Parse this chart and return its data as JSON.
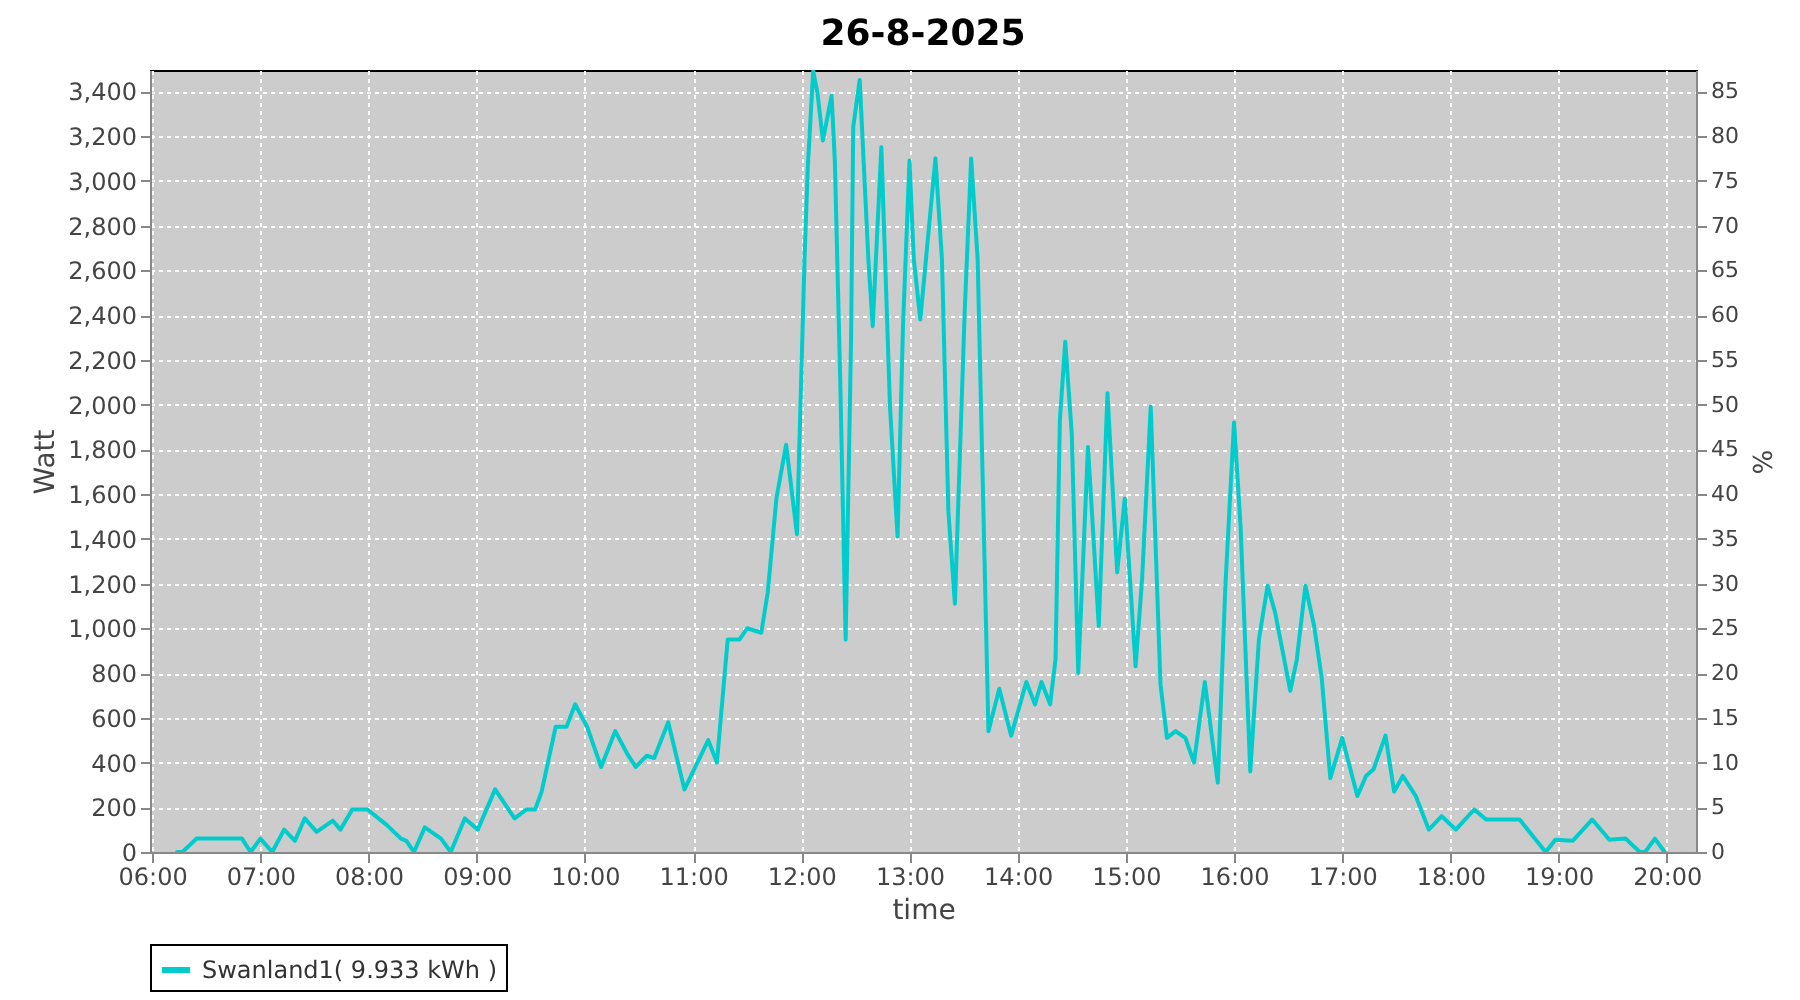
{
  "chart_data": {
    "type": "line",
    "title": "26-8-2025",
    "xlabel": "time",
    "ylabel": "Watt",
    "y2label": "%",
    "xlim": [
      5.98,
      20.27
    ],
    "xticks": [
      {
        "value": 6,
        "label": "06:00"
      },
      {
        "value": 7,
        "label": "07:00"
      },
      {
        "value": 8,
        "label": "08:00"
      },
      {
        "value": 9,
        "label": "09:00"
      },
      {
        "value": 10,
        "label": "10:00"
      },
      {
        "value": 11,
        "label": "11:00"
      },
      {
        "value": 12,
        "label": "12:00"
      },
      {
        "value": 13,
        "label": "13:00"
      },
      {
        "value": 14,
        "label": "14:00"
      },
      {
        "value": 15,
        "label": "15:00"
      },
      {
        "value": 16,
        "label": "16:00"
      },
      {
        "value": 17,
        "label": "17:00"
      },
      {
        "value": 18,
        "label": "18:00"
      },
      {
        "value": 19,
        "label": "19:00"
      },
      {
        "value": 20,
        "label": "20:00"
      }
    ],
    "ylim": [
      0,
      3495
    ],
    "yticks": [
      0,
      200,
      400,
      600,
      800,
      {
        "value": 1000,
        "label": "1,000"
      },
      {
        "value": 1200,
        "label": "1,200"
      },
      {
        "value": 1400,
        "label": "1,400"
      },
      {
        "value": 1600,
        "label": "1,600"
      },
      {
        "value": 1800,
        "label": "1,800"
      },
      {
        "value": 2000,
        "label": "2,000"
      },
      {
        "value": 2200,
        "label": "2,200"
      },
      {
        "value": 2400,
        "label": "2,400"
      },
      {
        "value": 2600,
        "label": "2,600"
      },
      {
        "value": 2800,
        "label": "2,800"
      },
      {
        "value": 3000,
        "label": "3,000"
      },
      {
        "value": 3200,
        "label": "3,200"
      },
      {
        "value": 3400,
        "label": "3,400"
      }
    ],
    "y2lim": [
      0,
      87.4
    ],
    "y2ticks": [
      0,
      5,
      10,
      15,
      20,
      25,
      30,
      35,
      40,
      45,
      50,
      55,
      60,
      65,
      70,
      75,
      80,
      85
    ],
    "grid": true,
    "legend": "bottom",
    "marker": "none",
    "line_style": "solid",
    "series": [
      {
        "name": "Swanland1( 9.933 kWh )",
        "color": "#00cccc",
        "x": [
          6.23,
          6.28,
          6.41,
          6.83,
          6.91,
          7.0,
          7.11,
          7.22,
          7.32,
          7.41,
          7.52,
          7.67,
          7.74,
          7.85,
          7.99,
          8.17,
          8.3,
          8.35,
          8.42,
          8.52,
          8.67,
          8.76,
          8.89,
          9.01,
          9.17,
          9.35,
          9.46,
          9.54,
          9.6,
          9.73,
          9.83,
          9.91,
          10.02,
          10.15,
          10.28,
          10.39,
          10.47,
          10.57,
          10.64,
          10.77,
          10.92,
          11.14,
          11.22,
          11.32,
          11.43,
          11.5,
          11.63,
          11.69,
          11.77,
          11.86,
          11.96,
          11.98,
          12.03,
          12.06,
          12.11,
          12.15,
          12.2,
          12.28,
          12.31,
          12.36,
          12.41,
          12.46,
          12.48,
          12.54,
          12.62,
          12.66,
          12.74,
          12.82,
          12.89,
          12.94,
          13.0,
          13.04,
          13.1,
          13.17,
          13.24,
          13.3,
          13.36,
          13.42,
          13.51,
          13.57,
          13.63,
          13.73,
          13.83,
          13.94,
          14.08,
          14.16,
          14.22,
          14.3,
          14.35,
          14.39,
          14.44,
          14.5,
          14.56,
          14.65,
          14.75,
          14.83,
          14.92,
          14.99,
          15.09,
          15.15,
          15.23,
          15.32,
          15.38,
          15.46,
          15.55,
          15.63,
          15.73,
          15.85,
          15.92,
          16.0,
          16.06,
          16.15,
          16.23,
          16.31,
          16.38,
          16.52,
          16.58,
          16.66,
          16.74,
          16.81,
          16.89,
          17.0,
          17.14,
          17.22,
          17.29,
          17.4,
          17.48,
          17.56,
          17.68,
          17.8,
          17.92,
          18.05,
          18.22,
          18.33,
          18.64,
          18.88,
          18.97,
          19.13,
          19.31,
          19.47,
          19.62,
          19.75,
          19.8,
          19.89,
          19.98
        ],
        "values": [
          0,
          0,
          60,
          60,
          0,
          60,
          0,
          100,
          50,
          150,
          90,
          140,
          100,
          190,
          190,
          120,
          60,
          50,
          0,
          110,
          60,
          0,
          150,
          100,
          280,
          150,
          190,
          190,
          270,
          560,
          560,
          660,
          560,
          380,
          540,
          440,
          380,
          430,
          420,
          580,
          280,
          500,
          400,
          950,
          950,
          1000,
          980,
          1160,
          1580,
          1820,
          1420,
          1780,
          2650,
          3060,
          3490,
          3390,
          3180,
          3380,
          3090,
          2110,
          950,
          2290,
          3240,
          3450,
          2650,
          2350,
          3150,
          1990,
          1410,
          2350,
          3090,
          2650,
          2380,
          2740,
          3100,
          2650,
          1520,
          1110,
          2410,
          3100,
          2650,
          540,
          730,
          520,
          760,
          660,
          760,
          660,
          860,
          1930,
          2280,
          1870,
          800,
          1810,
          1010,
          2050,
          1250,
          1580,
          830,
          1220,
          1990,
          750,
          510,
          540,
          510,
          400,
          760,
          310,
          1190,
          1920,
          1460,
          360,
          950,
          1190,
          1070,
          720,
          860,
          1190,
          1010,
          780,
          330,
          510,
          250,
          340,
          370,
          520,
          270,
          340,
          250,
          100,
          160,
          100,
          190,
          145,
          145,
          0,
          55,
          50,
          145,
          55,
          60,
          0,
          0,
          60,
          0
        ]
      }
    ]
  }
}
